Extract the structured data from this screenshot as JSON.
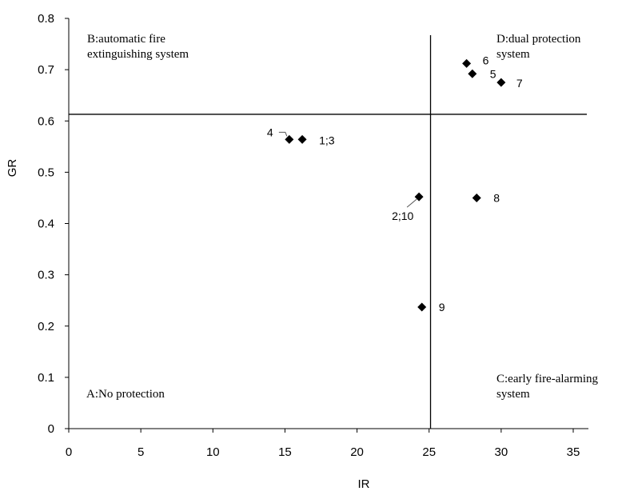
{
  "chart_data": {
    "type": "scatter",
    "xlabel": "IR",
    "ylabel": "GR",
    "xlim": [
      0,
      35
    ],
    "ylim": [
      0,
      0.8
    ],
    "xticks": [
      "0",
      "5",
      "10",
      "15",
      "20",
      "25",
      "30",
      "35"
    ],
    "yticks": [
      "0",
      "0.1",
      "0.2",
      "0.3",
      "0.4",
      "0.5",
      "0.6",
      "0.7",
      "0.8"
    ],
    "grid": false,
    "marker": "diamond",
    "marker_color": "#000000",
    "divider_lines": {
      "x": 25.1,
      "y": 0.613
    },
    "points": [
      {
        "x": 15.3,
        "y": 0.564,
        "label": "4"
      },
      {
        "x": 16.2,
        "y": 0.564,
        "label": "1;3"
      },
      {
        "x": 24.3,
        "y": 0.452,
        "label": "2;10"
      },
      {
        "x": 24.5,
        "y": 0.237,
        "label": "9"
      },
      {
        "x": 27.6,
        "y": 0.712,
        "label": "6"
      },
      {
        "x": 28.0,
        "y": 0.692,
        "label": "5"
      },
      {
        "x": 30.0,
        "y": 0.675,
        "label": "7"
      },
      {
        "x": 28.3,
        "y": 0.45,
        "label": "8"
      }
    ],
    "quadrant_labels": {
      "A": [
        "A:No protection"
      ],
      "B": [
        "B:automatic fire",
        "extinguishing system"
      ],
      "C": [
        "C:early fire-alarming",
        "system"
      ],
      "D": [
        "D:dual protection",
        "system"
      ]
    }
  }
}
